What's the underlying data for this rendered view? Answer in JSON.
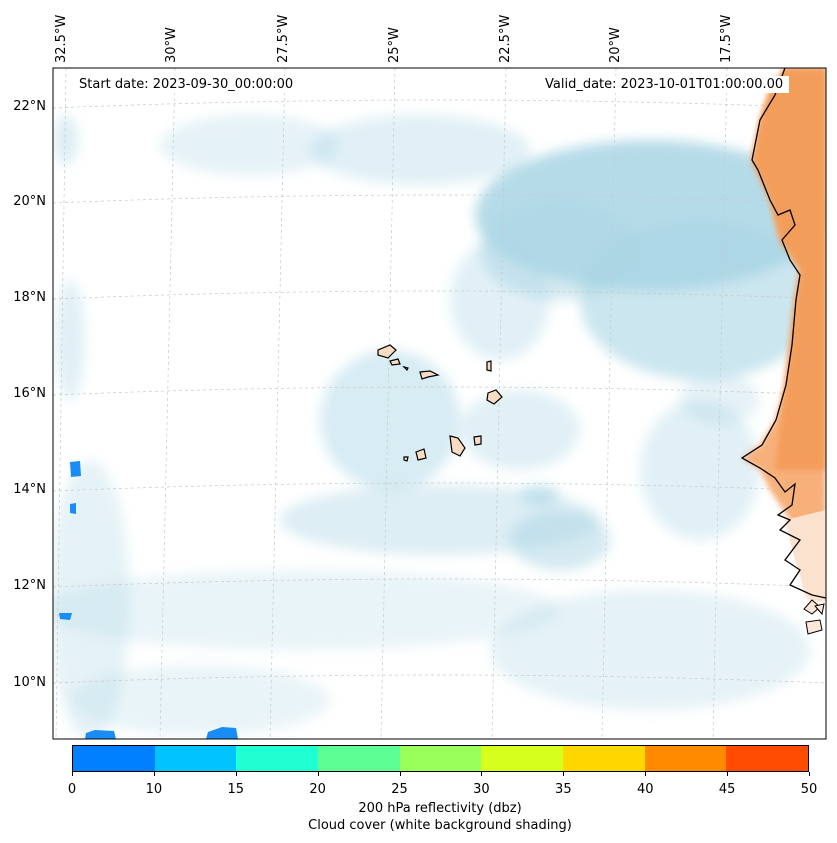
{
  "map": {
    "start_date": "Start date: 2023-09-30_00:00:00",
    "valid_date": "Valid_date: 2023-10-01T01:00:00.00",
    "lon_labels": [
      "32.5°W",
      "30°W",
      "27.5°W",
      "25°W",
      "22.5°W",
      "20°W",
      "17.5°W"
    ],
    "lat_labels": [
      "22°N",
      "20°N",
      "18°N",
      "16°N",
      "14°N",
      "12°N",
      "10°N"
    ]
  },
  "colorbar": {
    "colors": [
      "#007fff",
      "#00c3ff",
      "#1fffd2",
      "#5cff94",
      "#99ff5a",
      "#d6ff1d",
      "#ffd700",
      "#ff8a00",
      "#ff4c00"
    ],
    "ticks": [
      "0",
      "10",
      "15",
      "20",
      "25",
      "30",
      "35",
      "40",
      "45",
      "50"
    ],
    "label": "200 hPa reflectivity (dbz)",
    "sublabel": "Cloud cover (white background shading)"
  }
}
